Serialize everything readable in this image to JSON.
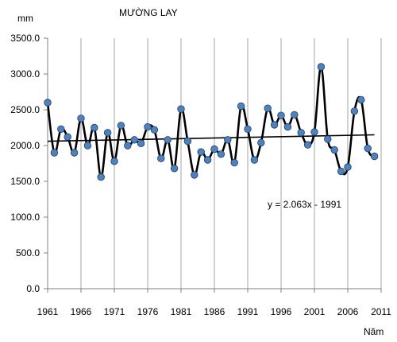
{
  "chart_data": {
    "type": "line",
    "title": "MƯỜNG LAY",
    "ylabel": "mm",
    "xlabel": "Năm",
    "ylim": [
      0,
      3500
    ],
    "xlim": [
      1961,
      2011
    ],
    "y_ticks": [
      "0.0",
      "500.0",
      "1000.0",
      "1500.0",
      "2000.0",
      "2500.0",
      "3000.0",
      "3500.0"
    ],
    "x_ticks": [
      "1961",
      "1966",
      "1971",
      "1976",
      "1981",
      "1986",
      "1991",
      "1996",
      "2001",
      "2006",
      "2011"
    ],
    "grid": "vertical",
    "series": [
      {
        "color": "#000000",
        "marker_color": "#4f81bd",
        "x": [
          1961,
          1962,
          1963,
          1964,
          1965,
          1966,
          1967,
          1968,
          1969,
          1970,
          1971,
          1972,
          1973,
          1974,
          1975,
          1976,
          1977,
          1978,
          1979,
          1980,
          1981,
          1982,
          1983,
          1984,
          1985,
          1986,
          1987,
          1988,
          1989,
          1990,
          1991,
          1992,
          1993,
          1994,
          1995,
          1996,
          1997,
          1998,
          1999,
          2000,
          2001,
          2002,
          2003,
          2004,
          2005,
          2006,
          2007,
          2008,
          2009,
          2010
        ],
        "values": [
          2600,
          1900,
          2230,
          2120,
          1900,
          2380,
          2000,
          2250,
          1560,
          2180,
          1780,
          2280,
          2000,
          2080,
          2030,
          2260,
          2220,
          1820,
          2080,
          1680,
          2510,
          2060,
          1590,
          1910,
          1800,
          1950,
          1880,
          2080,
          1760,
          2550,
          2230,
          1800,
          2040,
          2520,
          2290,
          2420,
          2260,
          2430,
          2180,
          2010,
          2190,
          3100,
          2090,
          1940,
          1640,
          1700,
          2480,
          2640,
          1960,
          1850
        ]
      }
    ],
    "trendline": {
      "equation": "y = 2.063x - 1991",
      "start": [
        1961,
        2060
      ],
      "end": [
        2010,
        2150
      ],
      "color": "#000000"
    }
  }
}
